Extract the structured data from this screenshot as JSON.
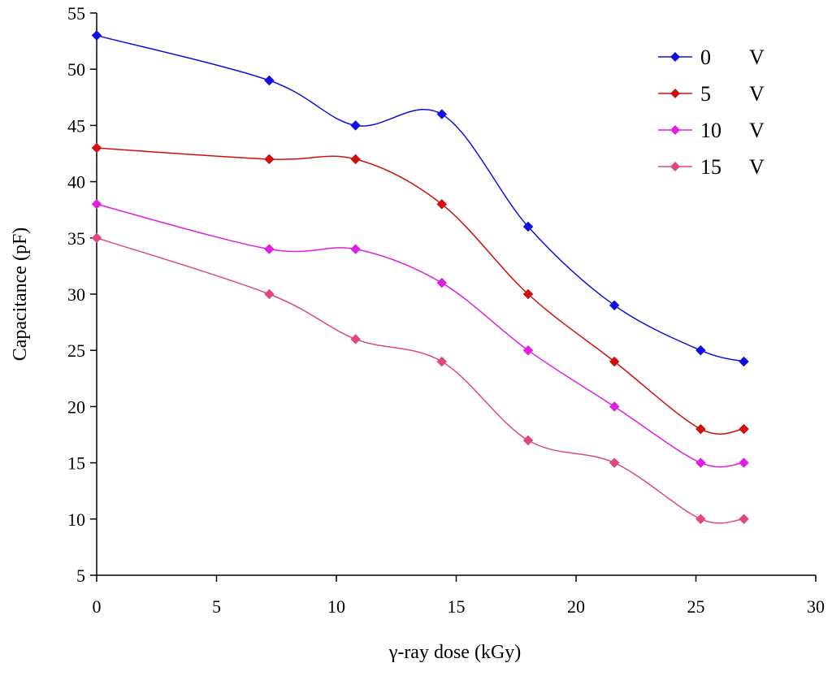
{
  "chart_data": {
    "type": "line",
    "title": "",
    "xlabel": "γ-ray dose  (kGy)",
    "ylabel": "Capacitance  (pF)",
    "xlim": [
      0,
      30
    ],
    "ylim": [
      5,
      55
    ],
    "x_ticks": [
      0,
      5,
      10,
      15,
      20,
      25,
      30
    ],
    "y_ticks": [
      5,
      10,
      15,
      20,
      25,
      30,
      35,
      40,
      45,
      50,
      55
    ],
    "grid": false,
    "smooth": true,
    "legend_position": "top-right",
    "x": [
      0,
      7.2,
      10.8,
      14.4,
      18,
      21.6,
      25.2,
      27
    ],
    "series": [
      {
        "name": "0",
        "unit": "V",
        "color": "#1010e0",
        "values": [
          53,
          49,
          45,
          46,
          36,
          29,
          25,
          24
        ]
      },
      {
        "name": "5",
        "unit": "V",
        "color": "#d01010",
        "values": [
          43,
          42,
          42,
          38,
          30,
          24,
          18,
          18
        ]
      },
      {
        "name": "10",
        "unit": "V",
        "color": "#e020e0",
        "values": [
          38,
          34,
          34,
          31,
          25,
          20,
          15,
          15
        ]
      },
      {
        "name": "15",
        "unit": "V",
        "color": "#e04878",
        "values": [
          35,
          30,
          26,
          24,
          17,
          15,
          10,
          10
        ]
      }
    ]
  }
}
